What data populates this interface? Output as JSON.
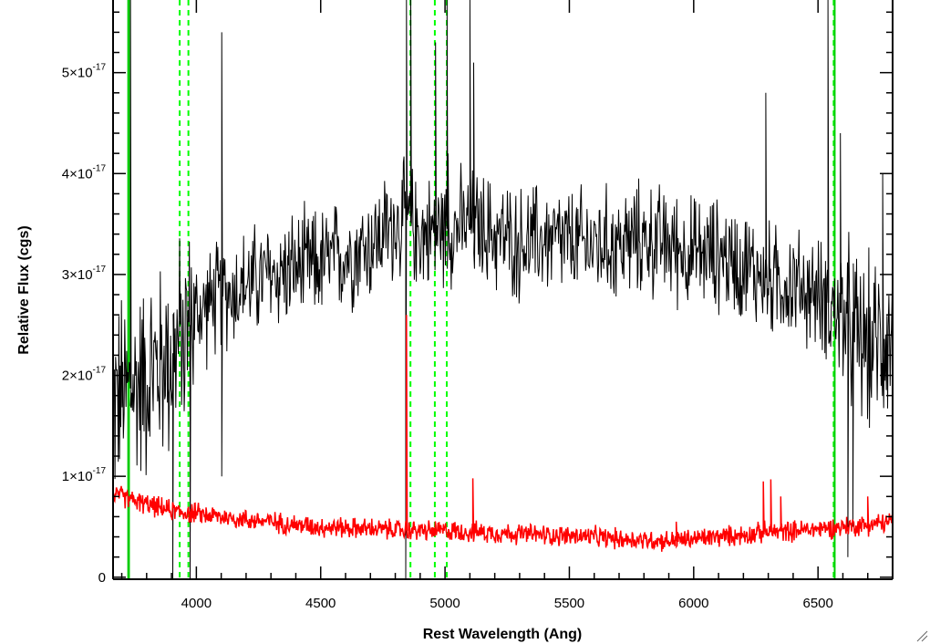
{
  "chart_data": {
    "type": "line",
    "xlabel": "Rest Wavelength (Ang)",
    "ylabel": "Relative Flux (cgs)",
    "xlim": [
      3665,
      6800
    ],
    "ylim": [
      -2e-19,
      5.72e-17
    ],
    "x_ticks": [
      4000,
      4500,
      5000,
      5500,
      6000,
      6500
    ],
    "x_tick_labels": [
      "4000",
      "4500",
      "5000",
      "5500",
      "6000",
      "6500"
    ],
    "y_ticks": [
      0,
      1e-17,
      2e-17,
      3e-17,
      4e-17,
      5e-17
    ],
    "y_tick_labels": [
      {
        "mantissa": "0",
        "exponent": ""
      },
      {
        "mantissa": "1×10",
        "exponent": "-17"
      },
      {
        "mantissa": "2×10",
        "exponent": "-17"
      },
      {
        "mantissa": "3×10",
        "exponent": "-17"
      },
      {
        "mantissa": "4×10",
        "exponent": "-17"
      },
      {
        "mantissa": "5×10",
        "exponent": "-17"
      }
    ],
    "grid": false,
    "series": [
      {
        "color": "#000000",
        "line_width": 1,
        "noise_scale": 0.55,
        "x": [
          3665,
          3700,
          3750,
          3800,
          3850,
          3900,
          3950,
          4000,
          4100,
          4200,
          4300,
          4400,
          4500,
          4600,
          4700,
          4800,
          4850,
          4900,
          5000,
          5100,
          5200,
          5300,
          5400,
          5500,
          5600,
          5700,
          5800,
          5900,
          6000,
          6100,
          6200,
          6300,
          6400,
          6500,
          6550,
          6600,
          6650,
          6700,
          6800
        ],
        "y": [
          1.7e-17,
          1.8e-17,
          1.9e-17,
          2e-17,
          2.1e-17,
          2.2e-17,
          2.4e-17,
          2.6e-17,
          2.8e-17,
          2.9e-17,
          3e-17,
          3.05e-17,
          3.1e-17,
          3.2e-17,
          3.3e-17,
          3.5e-17,
          3.55e-17,
          3.4e-17,
          3.45e-17,
          3.5e-17,
          3.4e-17,
          3.3e-17,
          3.35e-17,
          3.3e-17,
          3.3e-17,
          3.3e-17,
          3.35e-17,
          3.3e-17,
          3.2e-17,
          3.2e-17,
          3.1e-17,
          2.95e-17,
          2.9e-17,
          2.8e-17,
          2.7e-17,
          2.6e-17,
          2.4e-17,
          2.3e-17,
          2.4e-17
        ],
        "spikes": [
          {
            "x": 3735,
            "y": 5.72e-17
          },
          {
            "x": 3905,
            "y": -2e-19
          },
          {
            "x": 3975,
            "y": -2e-19
          },
          {
            "x": 4102,
            "y": 5.4e-17
          },
          {
            "x": 4102,
            "y": 1e-17
          },
          {
            "x": 4842,
            "y": -2e-19
          },
          {
            "x": 4845,
            "y": 5.72e-17
          },
          {
            "x": 4862,
            "y": 5.72e-17
          },
          {
            "x": 4962,
            "y": 5.3e-17
          },
          {
            "x": 5008,
            "y": 5.72e-17
          },
          {
            "x": 5012,
            "y": 4.2e-17
          },
          {
            "x": 5100,
            "y": 5.72e-17
          },
          {
            "x": 5115,
            "y": 5.1e-17
          },
          {
            "x": 6290,
            "y": 4.8e-17
          },
          {
            "x": 6540,
            "y": 5.72e-17
          },
          {
            "x": 6590,
            "y": 4.4e-17
          },
          {
            "x": 6620,
            "y": 2e-18
          },
          {
            "x": 6640,
            "y": 5e-18
          },
          {
            "x": 6760,
            "y": 4e-17
          }
        ]
      },
      {
        "color": "#ff0000",
        "line_width": 1.5,
        "noise_scale": 0.09,
        "x": [
          3665,
          3700,
          3800,
          3900,
          4000,
          4100,
          4200,
          4300,
          4400,
          4500,
          4600,
          4700,
          4800,
          4900,
          5000,
          5100,
          5200,
          5300,
          5400,
          5500,
          5600,
          5700,
          5800,
          5900,
          6000,
          6100,
          6200,
          6300,
          6400,
          6500,
          6600,
          6700,
          6800
        ],
        "y": [
          8.2e-18,
          8e-18,
          7.2e-18,
          6.6e-18,
          6.3e-18,
          6e-18,
          5.7e-18,
          5.5e-18,
          5.2e-18,
          5e-18,
          4.9e-18,
          4.8e-18,
          4.7e-18,
          4.6e-18,
          4.6e-18,
          4.5e-18,
          4.4e-18,
          4.3e-18,
          4.2e-18,
          4.1e-18,
          4e-18,
          3.8e-18,
          3.7e-18,
          3.6e-18,
          3.8e-18,
          4e-18,
          4.2e-18,
          4.5e-18,
          4.6e-18,
          4.8e-18,
          5e-18,
          5.2e-18,
          5.5e-18
        ],
        "spikes": [
          {
            "x": 4845,
            "y": 2.6e-17
          },
          {
            "x": 5112,
            "y": 9.8e-18
          },
          {
            "x": 5930,
            "y": 5.5e-18
          },
          {
            "x": 6280,
            "y": 9.5e-18
          },
          {
            "x": 6310,
            "y": 9.7e-18
          },
          {
            "x": 6350,
            "y": 8e-18
          },
          {
            "x": 6700,
            "y": 8e-18
          }
        ]
      }
    ],
    "vertical_lines": [
      {
        "x": 3726,
        "style": "solid",
        "color": "#00cc00"
      },
      {
        "x": 3729,
        "style": "solid",
        "color": "#00cc00"
      },
      {
        "x": 3933,
        "style": "dashed",
        "color": "#00ff00"
      },
      {
        "x": 3968,
        "style": "dashed",
        "color": "#00ff00"
      },
      {
        "x": 4861,
        "style": "dashed",
        "color": "#00ff00"
      },
      {
        "x": 4959,
        "style": "dashed",
        "color": "#00ff00"
      },
      {
        "x": 5007,
        "style": "dashed",
        "color": "#00ff00"
      },
      {
        "x": 6563,
        "style": "dashed",
        "color": "#00ff00"
      },
      {
        "x": 6567,
        "style": "solid",
        "color": "#00cc00"
      }
    ]
  }
}
